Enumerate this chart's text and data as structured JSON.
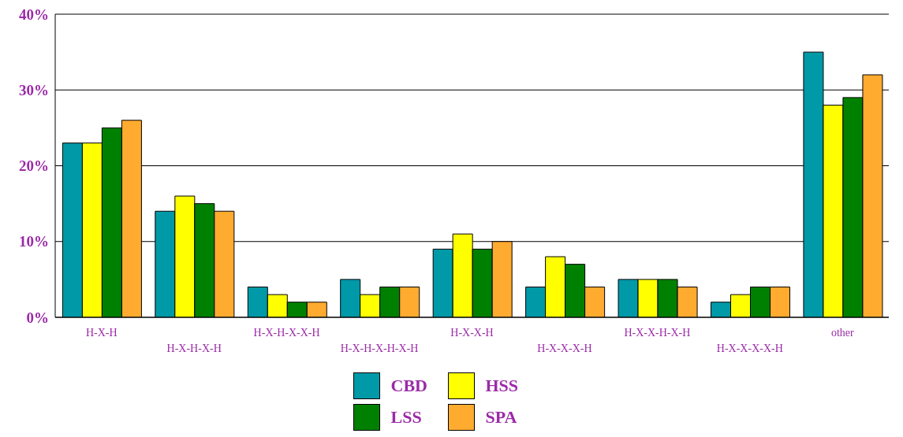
{
  "chart_data": {
    "type": "bar",
    "categories": [
      "H-X-H",
      "H-X-H-X-H",
      "H-X-H-X-X-H",
      "H-X-H-X-H-X-H",
      "H-X-X-H",
      "H-X-X-X-H",
      "H-X-X-H-X-H",
      "H-X-X-X-X-H",
      "other"
    ],
    "series": [
      {
        "name": "CBD",
        "color": "#0099a8",
        "values": [
          23,
          14,
          4,
          5,
          9,
          4,
          5,
          2,
          35
        ]
      },
      {
        "name": "HSS",
        "color": "#ffff00",
        "values": [
          23,
          16,
          3,
          3,
          11,
          8,
          5,
          3,
          28
        ]
      },
      {
        "name": "LSS",
        "color": "#008000",
        "values": [
          25,
          15,
          2,
          4,
          9,
          7,
          5,
          4,
          29
        ]
      },
      {
        "name": "SPA",
        "color": "#ffab30",
        "values": [
          26,
          14,
          2,
          4,
          10,
          4,
          4,
          4,
          32
        ]
      }
    ],
    "ylim": [
      0,
      40
    ],
    "yticks": [
      {
        "value": 0,
        "label": "0%"
      },
      {
        "value": 10,
        "label": "10%"
      },
      {
        "value": 20,
        "label": "20%"
      },
      {
        "value": 30,
        "label": "30%"
      },
      {
        "value": 40,
        "label": "40%"
      }
    ],
    "grid": "y",
    "legend": "bottom"
  }
}
